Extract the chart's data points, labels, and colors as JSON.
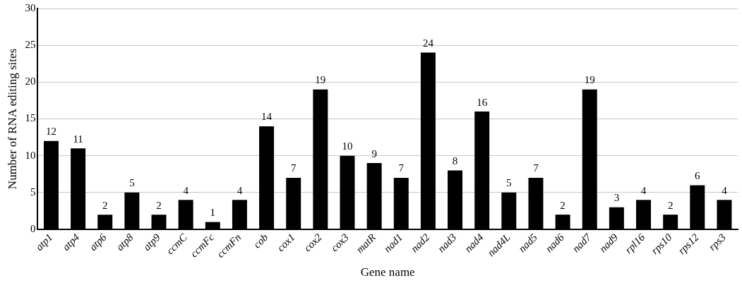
{
  "chart_data": {
    "type": "bar",
    "xlabel": "Gene name",
    "ylabel": "Number of RNA editing sites",
    "categories": [
      "atp1",
      "atp4",
      "atp6",
      "atp8",
      "atp9",
      "ccmC",
      "ccmFc",
      "ccmFn",
      "cob",
      "cox1",
      "cox2",
      "cox3",
      "matR",
      "nad1",
      "nad2",
      "nad3",
      "nad4",
      "nad4L",
      "nad5",
      "nad6",
      "nad7",
      "nad9",
      "rpl16",
      "rps10",
      "rps12",
      "rps3"
    ],
    "values": [
      12,
      11,
      2,
      5,
      2,
      4,
      1,
      4,
      14,
      7,
      19,
      10,
      9,
      7,
      24,
      8,
      16,
      5,
      7,
      2,
      19,
      3,
      4,
      2,
      6,
      4
    ],
    "color": "#000000",
    "ylim": [
      0,
      30
    ],
    "yticks": [
      0,
      5,
      10,
      15,
      20,
      25,
      30
    ],
    "grid": "y",
    "data_labels": true,
    "legend": false
  }
}
